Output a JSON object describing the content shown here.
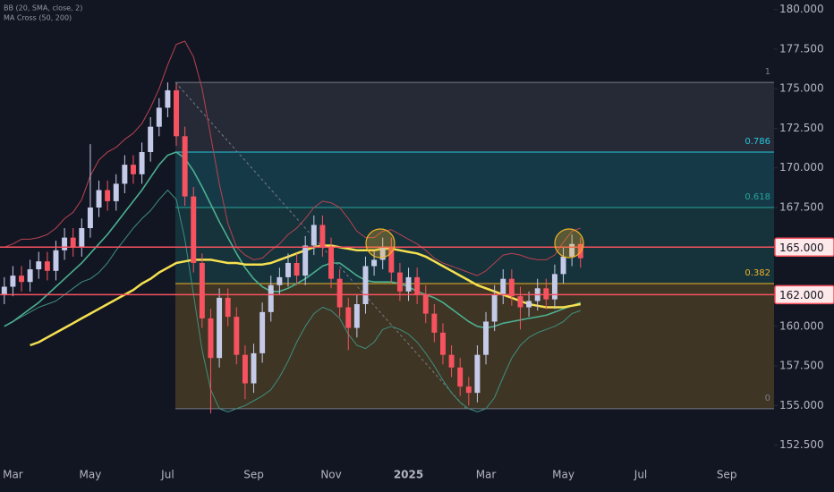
{
  "chart_data": {
    "type": "candlestick",
    "indicators": [
      "BB (20, SMA, close, 2)",
      "MA Cross (50, 200)"
    ],
    "categories": [
      null,
      "Mar",
      null,
      null,
      null,
      null,
      null,
      null,
      null,
      null,
      "May",
      null,
      null,
      null,
      null,
      null,
      null,
      null,
      null,
      "Jul",
      null,
      null,
      null,
      null,
      null,
      null,
      null,
      null,
      null,
      "Sep",
      null,
      null,
      null,
      null,
      null,
      null,
      null,
      null,
      "Nov",
      null,
      null,
      null,
      null,
      null,
      null,
      null,
      null,
      "2025",
      null,
      null,
      null,
      null,
      null,
      null,
      null,
      null,
      "Mar",
      null,
      null,
      null,
      null,
      null,
      null,
      null,
      null,
      "May",
      null,
      null,
      null,
      null,
      null,
      null,
      null,
      null,
      "Jul",
      null,
      null,
      null,
      null,
      null,
      null,
      null,
      null,
      null,
      "Sep",
      null,
      null,
      null,
      null,
      null
    ],
    "candles": {
      "up_color": "#c5cae9",
      "down_color": "#f7525f",
      "open": [
        162.0,
        162.5,
        163.2,
        162.8,
        163.6,
        164.1,
        163.5,
        164.8,
        165.6,
        165.0,
        166.2,
        167.5,
        168.6,
        167.9,
        169.0,
        170.2,
        169.6,
        171.0,
        172.6,
        173.8,
        174.9,
        172.0,
        168.2,
        164.0,
        160.5,
        158.0,
        161.8,
        160.6,
        158.2,
        156.4,
        158.3,
        160.9,
        162.6,
        163.1,
        164.0,
        163.2,
        165.1,
        166.4,
        165.0,
        163.0,
        161.2,
        159.9,
        161.4,
        163.8,
        164.2,
        165.0,
        163.4,
        162.2,
        163.1,
        162.0,
        160.8,
        159.6,
        158.2,
        157.4,
        156.2,
        155.8,
        158.2,
        160.3,
        162.0,
        163.0,
        161.9,
        161.2,
        161.6,
        162.4,
        161.7,
        163.3,
        164.4,
        165.2,
        null,
        null,
        null,
        null,
        null,
        null,
        null,
        null,
        null,
        null,
        null,
        null,
        null,
        null,
        null,
        null,
        null,
        null,
        null,
        null,
        null,
        null
      ],
      "high": [
        163.1,
        163.8,
        163.8,
        164.2,
        164.7,
        164.7,
        165.4,
        166.2,
        166.2,
        166.8,
        171.5,
        169.2,
        169.2,
        169.6,
        170.8,
        170.8,
        171.6,
        173.2,
        174.4,
        175.4,
        175.3,
        172.6,
        168.8,
        164.6,
        161.1,
        162.4,
        162.4,
        161.2,
        158.8,
        158.9,
        161.5,
        163.2,
        163.7,
        164.6,
        164.6,
        165.7,
        167.0,
        167.0,
        165.6,
        163.6,
        161.8,
        162.0,
        164.4,
        164.8,
        165.6,
        165.6,
        164.0,
        163.7,
        163.7,
        162.6,
        161.4,
        160.2,
        158.8,
        158.0,
        156.8,
        158.8,
        160.9,
        162.6,
        163.6,
        163.6,
        162.5,
        162.2,
        163.0,
        163.0,
        163.9,
        165.0,
        165.8,
        165.6,
        null,
        null,
        null,
        null,
        null,
        null,
        null,
        null,
        null,
        null,
        null,
        null,
        null,
        null,
        null,
        null,
        null,
        null,
        null,
        null,
        null,
        null
      ],
      "low": [
        161.4,
        161.9,
        162.2,
        162.2,
        163.0,
        162.9,
        162.9,
        164.2,
        164.4,
        164.4,
        165.6,
        166.9,
        167.3,
        167.3,
        168.4,
        169.0,
        169.0,
        170.4,
        172.0,
        173.2,
        171.4,
        167.6,
        163.4,
        159.9,
        154.5,
        157.4,
        160.0,
        157.6,
        155.4,
        155.8,
        157.7,
        160.3,
        162.0,
        162.5,
        162.6,
        162.6,
        164.5,
        164.4,
        162.4,
        160.6,
        158.5,
        159.3,
        160.8,
        163.2,
        163.6,
        162.8,
        161.6,
        161.6,
        161.4,
        160.2,
        159.0,
        157.6,
        156.8,
        155.6,
        155.0,
        155.2,
        157.6,
        159.7,
        161.4,
        161.3,
        159.8,
        160.6,
        161.0,
        161.1,
        161.1,
        162.7,
        163.8,
        163.7,
        null,
        null,
        null,
        null,
        null,
        null,
        null,
        null,
        null,
        null,
        null,
        null,
        null,
        null,
        null,
        null,
        null,
        null,
        null,
        null,
        null,
        null
      ],
      "close": [
        162.5,
        163.2,
        162.8,
        163.6,
        164.1,
        163.5,
        164.8,
        165.6,
        165.0,
        166.2,
        167.5,
        168.6,
        167.9,
        169.0,
        170.2,
        169.6,
        171.0,
        172.6,
        173.8,
        174.9,
        172.0,
        168.2,
        164.0,
        160.5,
        158.0,
        161.8,
        160.6,
        158.2,
        156.4,
        158.3,
        160.9,
        162.6,
        163.1,
        164.0,
        163.2,
        165.1,
        166.4,
        165.0,
        163.0,
        161.2,
        159.9,
        161.4,
        163.8,
        164.2,
        165.0,
        163.4,
        162.2,
        163.1,
        162.0,
        160.8,
        159.6,
        158.2,
        157.4,
        156.2,
        155.8,
        158.2,
        160.3,
        162.0,
        163.0,
        161.9,
        161.2,
        161.6,
        162.4,
        161.7,
        163.3,
        164.4,
        165.2,
        164.3,
        null,
        null,
        null,
        null,
        null,
        null,
        null,
        null,
        null,
        null,
        null,
        null,
        null,
        null,
        null,
        null,
        null,
        null,
        null,
        null,
        null,
        null
      ]
    },
    "lines": [
      {
        "color": "#b8434f",
        "width": 1,
        "values": [
          165,
          165.2,
          165.5,
          165.5,
          165.6,
          165.8,
          166.2,
          166.8,
          167.2,
          168.0,
          169.5,
          170.5,
          171.0,
          171.3,
          171.8,
          172.2,
          172.8,
          173.8,
          175.0,
          176.5,
          177.8,
          178.0,
          177.0,
          175.0,
          172.0,
          169.0,
          166.5,
          165.0,
          164.5,
          164.2,
          164.3,
          164.8,
          165.2,
          165.8,
          166.2,
          166.8,
          167.5,
          167.9,
          167.8,
          167.5,
          166.8,
          166.0,
          165.6,
          165.6,
          166.0,
          166.1,
          165.8,
          165.5,
          165.2,
          164.8,
          164.3,
          164.0,
          163.8,
          163.6,
          163.4,
          163.2,
          163.5,
          164.0,
          164.5,
          164.6,
          164.5,
          164.3,
          164.2,
          164.2,
          164.5,
          165.3,
          166.0,
          166.2,
          null,
          null,
          null,
          null,
          null,
          null,
          null,
          null,
          null,
          null,
          null,
          null,
          null,
          null,
          null,
          null,
          null,
          null,
          null,
          null,
          null,
          null
        ]
      },
      {
        "color": "#3f8f7f",
        "width": 1,
        "values": [
          160.0,
          160.3,
          160.6,
          160.9,
          161.2,
          161.4,
          161.6,
          162.0,
          162.4,
          162.8,
          163.0,
          163.4,
          164.0,
          164.8,
          165.5,
          166.2,
          166.8,
          167.3,
          168.0,
          168.6,
          168.0,
          165.5,
          162.0,
          158.5,
          156.0,
          154.8,
          154.6,
          154.8,
          155.0,
          155.3,
          155.6,
          156.0,
          156.8,
          157.8,
          159.0,
          160.0,
          160.8,
          161.2,
          161.0,
          160.5,
          159.5,
          158.8,
          158.6,
          159.0,
          159.8,
          160.0,
          159.8,
          159.5,
          159.0,
          158.3,
          157.5,
          156.6,
          155.8,
          155.2,
          154.8,
          154.6,
          154.8,
          155.5,
          156.8,
          158.0,
          158.8,
          159.3,
          159.6,
          159.8,
          160.0,
          160.3,
          160.8,
          161.0,
          null,
          null,
          null,
          null,
          null,
          null,
          null,
          null,
          null,
          null,
          null,
          null,
          null,
          null,
          null,
          null,
          null,
          null,
          null,
          null,
          null,
          null
        ]
      },
      {
        "color": "#4caf8f",
        "width": 1.6,
        "values": [
          160.0,
          160.3,
          160.7,
          161.1,
          161.5,
          162.0,
          162.5,
          163.0,
          163.5,
          164.0,
          164.6,
          165.2,
          165.8,
          166.5,
          167.2,
          167.9,
          168.6,
          169.4,
          170.2,
          170.8,
          171.0,
          170.6,
          169.8,
          168.8,
          167.7,
          166.6,
          165.6,
          164.6,
          163.7,
          163.0,
          162.5,
          162.2,
          162.2,
          162.4,
          162.7,
          163.0,
          163.4,
          163.8,
          164.0,
          164.0,
          163.6,
          163.2,
          162.9,
          162.8,
          162.8,
          162.8,
          162.7,
          162.5,
          162.2,
          162.0,
          161.8,
          161.5,
          161.1,
          160.7,
          160.3,
          160.0,
          159.9,
          160.0,
          160.2,
          160.3,
          160.4,
          160.5,
          160.6,
          160.7,
          160.9,
          161.1,
          161.3,
          161.5,
          null,
          null,
          null,
          null,
          null,
          null,
          null,
          null,
          null,
          null,
          null,
          null,
          null,
          null,
          null,
          null,
          null,
          null,
          null,
          null,
          null,
          null
        ]
      },
      {
        "color": "#f5e050",
        "width": 2.5,
        "values": [
          null,
          null,
          null,
          158.8,
          159.0,
          159.3,
          159.6,
          159.9,
          160.2,
          160.5,
          160.8,
          161.1,
          161.4,
          161.7,
          162.0,
          162.3,
          162.7,
          163.0,
          163.4,
          163.7,
          164.0,
          164.1,
          164.2,
          164.2,
          164.2,
          164.1,
          164.0,
          164.0,
          163.9,
          163.9,
          163.9,
          164.0,
          164.2,
          164.4,
          164.6,
          164.8,
          165.0,
          165.1,
          165.1,
          165.0,
          164.9,
          164.8,
          164.8,
          164.8,
          164.9,
          164.9,
          164.8,
          164.7,
          164.6,
          164.4,
          164.1,
          163.8,
          163.5,
          163.2,
          162.9,
          162.6,
          162.4,
          162.2,
          162.0,
          161.8,
          161.6,
          161.4,
          161.3,
          161.2,
          161.2,
          161.2,
          161.3,
          161.4,
          null,
          null,
          null,
          null,
          null,
          null,
          null,
          null,
          null,
          null,
          null,
          null,
          null,
          null,
          null,
          null,
          null,
          null,
          null,
          null,
          null,
          null
        ]
      }
    ],
    "fib": {
      "levels": [
        1,
        0.786,
        0.618,
        0.382,
        0
      ],
      "prices": [
        175.4,
        171.0,
        167.5,
        162.7,
        154.8
      ],
      "colors": [
        "#787b86",
        "#26c6da",
        "#26a69a",
        "#f0b429",
        "#787b86"
      ]
    },
    "hlines": [
      {
        "value": 165,
        "label": "165.000",
        "color": "#f7525f"
      },
      {
        "value": 162,
        "label": "162.000",
        "color": "#f7525f"
      }
    ],
    "ylim": [
      151.8,
      180.6
    ],
    "yticks": [
      {
        "value": 152.5,
        "label": "152.500"
      },
      {
        "value": 155,
        "label": "155.000"
      },
      {
        "value": 157.5,
        "label": "157.500"
      },
      {
        "value": 160,
        "label": "160.000"
      },
      {
        "value": 167.5,
        "label": "167.500"
      },
      {
        "value": 170,
        "label": "170.000"
      },
      {
        "value": 172.5,
        "label": "172.500"
      },
      {
        "value": 175,
        "label": "175.000"
      },
      {
        "value": 177.5,
        "label": "177.500"
      },
      {
        "value": 180,
        "label": "180.000"
      }
    ]
  }
}
